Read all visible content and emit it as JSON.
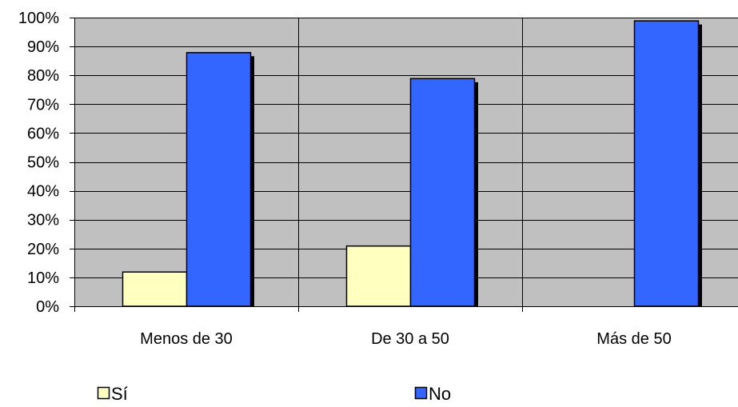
{
  "chart_data": {
    "type": "bar",
    "categories": [
      "Menos de 30",
      "De 30 a 50",
      "Más de 50"
    ],
    "series": [
      {
        "name": "Sí",
        "values": [
          12,
          21,
          0
        ],
        "color": "#ffffc0"
      },
      {
        "name": "No",
        "values": [
          88,
          79,
          99
        ],
        "color": "#3366ff"
      }
    ],
    "ylim": [
      0,
      100
    ],
    "ytick_step": 10,
    "ytick_suffix": "%",
    "plot_background": "#c0c0c0",
    "grid": true,
    "legend_position": "bottom",
    "title": "",
    "xlabel": "",
    "ylabel": ""
  }
}
